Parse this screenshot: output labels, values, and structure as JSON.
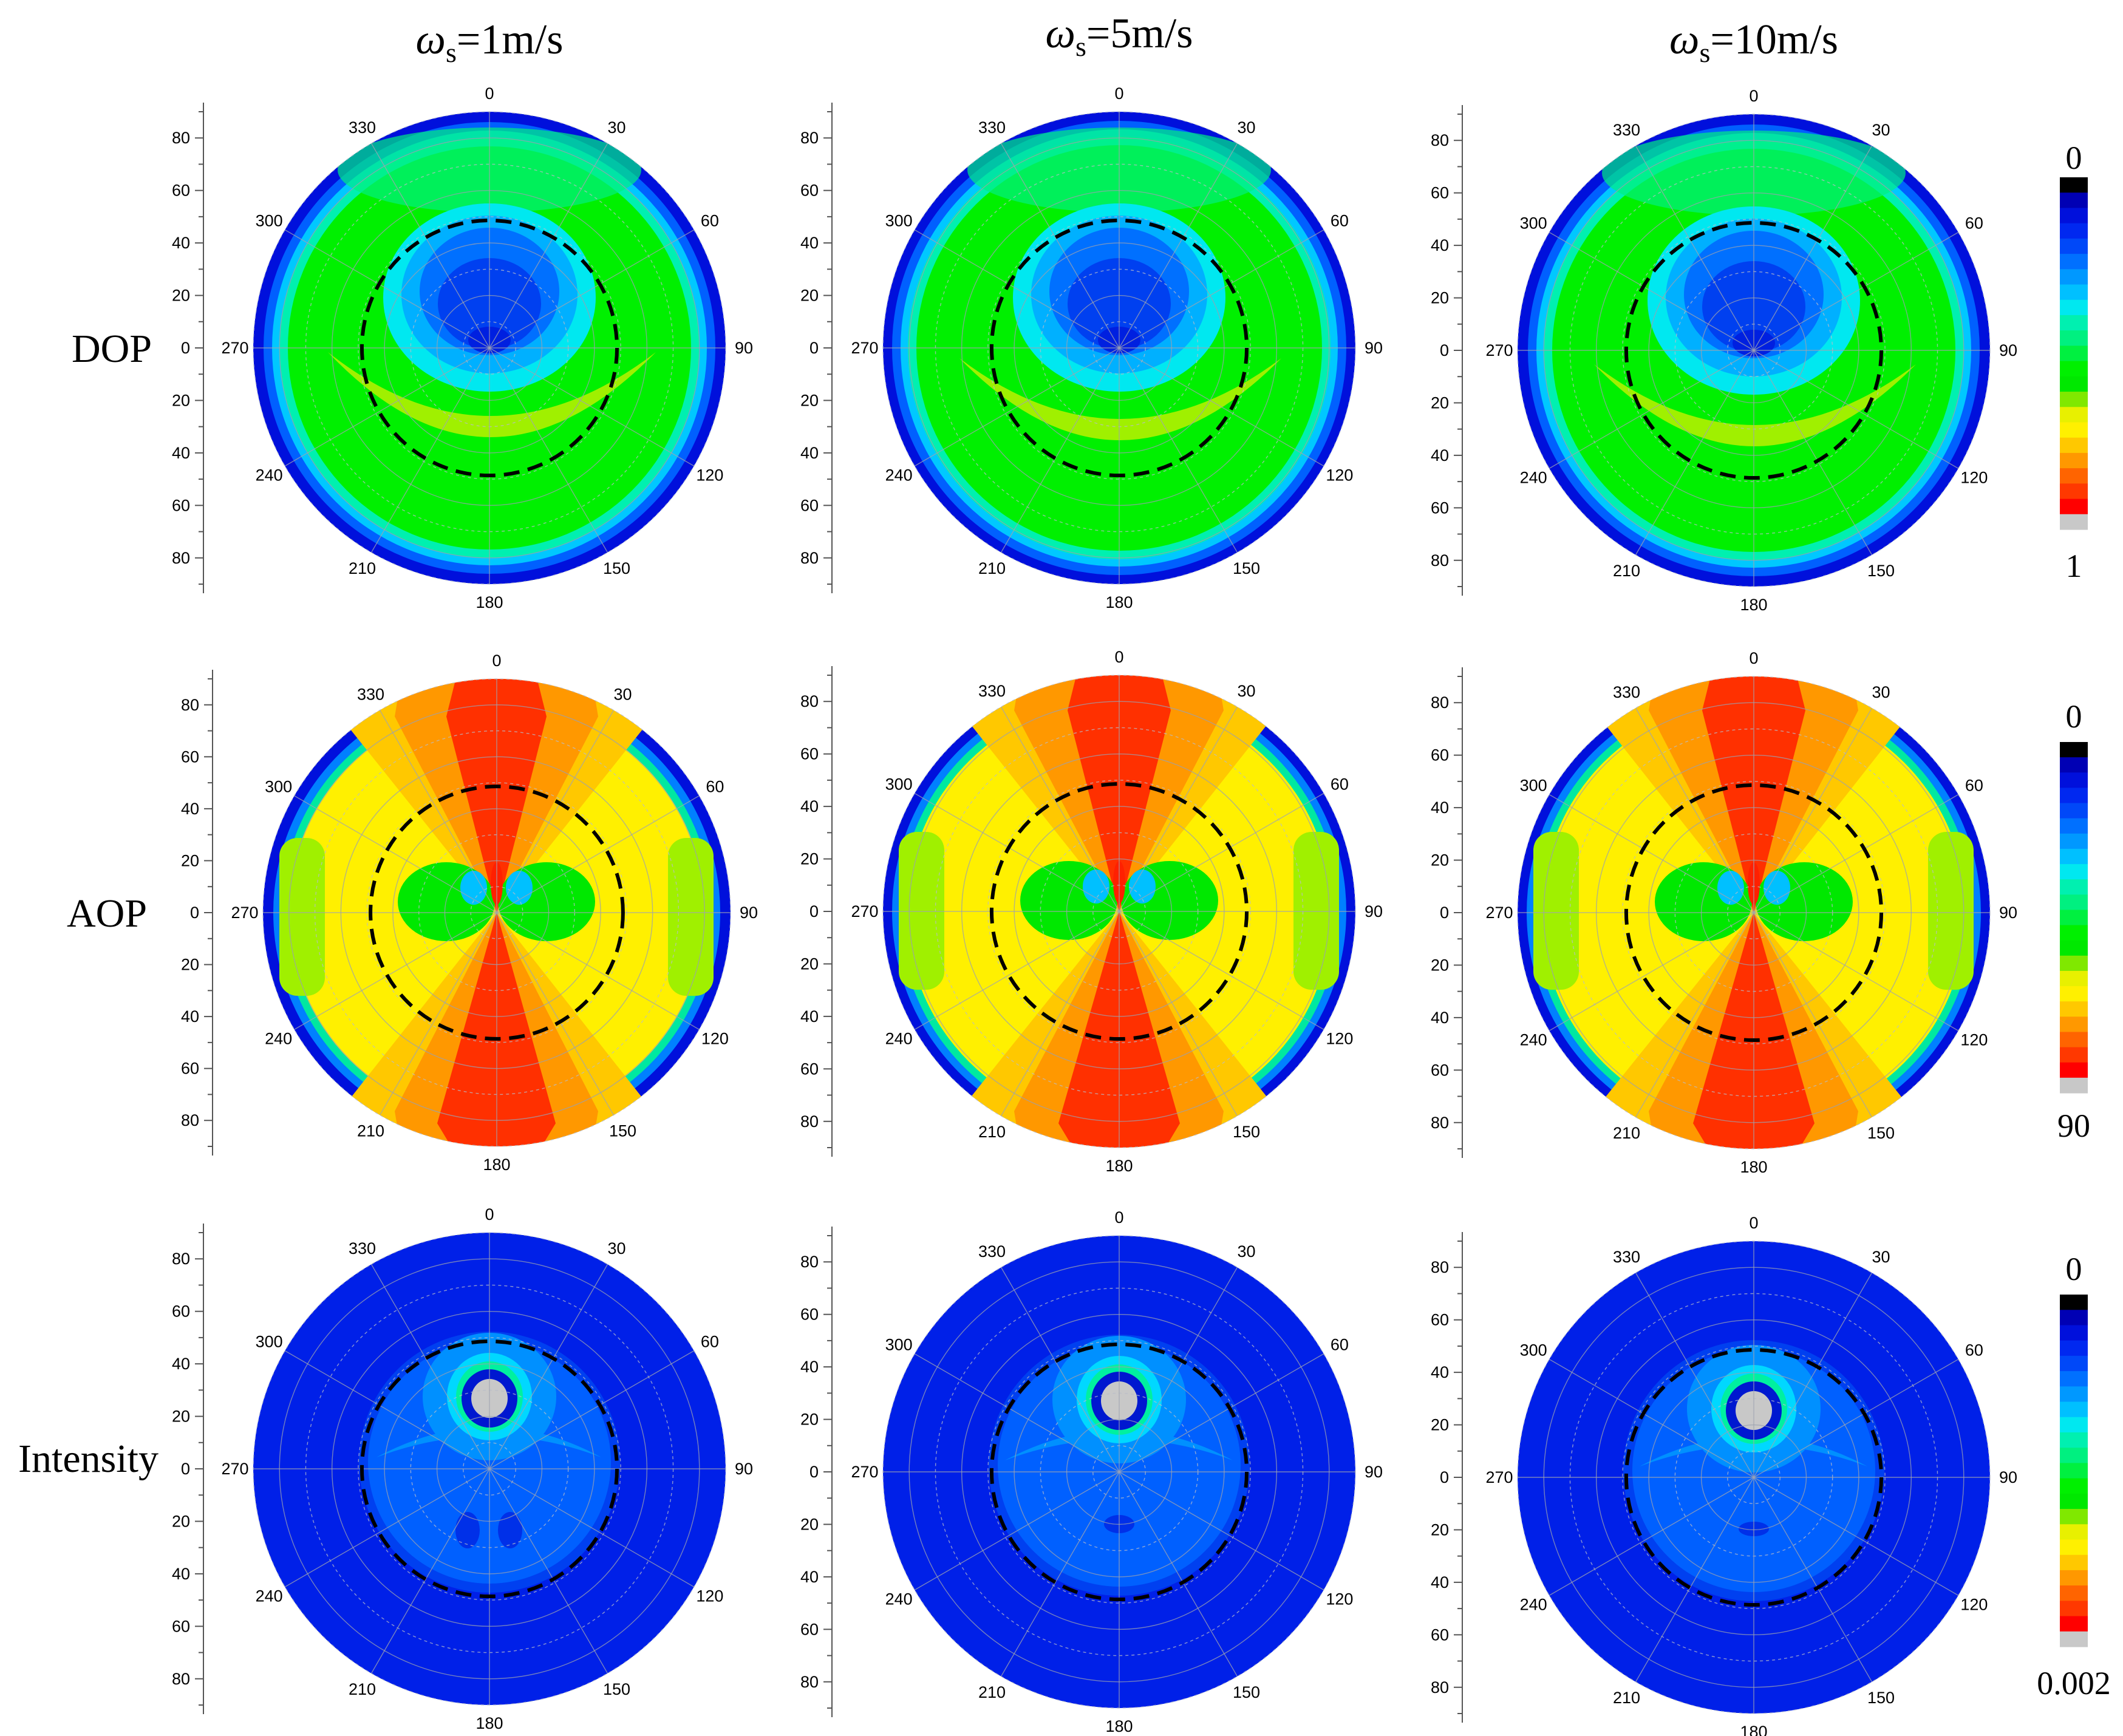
{
  "figure": {
    "column_titles": [
      {
        "symbol": "ω",
        "subscript": "s",
        "value": "=1m/s"
      },
      {
        "symbol": "ω",
        "subscript": "s",
        "value": "=5m/s"
      },
      {
        "symbol": "ω",
        "subscript": "s",
        "value": "=10m/s"
      }
    ],
    "row_labels": [
      "DOP",
      "AOP",
      "Intensity"
    ]
  },
  "chart_data": {
    "type": "polar-contour",
    "angle_ticks": [
      "0",
      "30",
      "60",
      "90",
      "120",
      "150",
      "180",
      "210",
      "240",
      "270",
      "300",
      "330"
    ],
    "radial_ticks": [
      "80",
      "60",
      "40",
      "20",
      "0",
      "20",
      "40",
      "60",
      "80"
    ],
    "radial_range": [
      0,
      90
    ],
    "dashed_circle_radius": 48.6,
    "panels": [
      {
        "row": "DOP",
        "wind_speed": "1m/s"
      },
      {
        "row": "DOP",
        "wind_speed": "5m/s"
      },
      {
        "row": "DOP",
        "wind_speed": "10m/s"
      },
      {
        "row": "AOP",
        "wind_speed": "1m/s"
      },
      {
        "row": "AOP",
        "wind_speed": "5m/s"
      },
      {
        "row": "AOP",
        "wind_speed": "10m/s"
      },
      {
        "row": "Intensity",
        "wind_speed": "1m/s"
      },
      {
        "row": "Intensity",
        "wind_speed": "5m/s"
      },
      {
        "row": "Intensity",
        "wind_speed": "10m/s"
      }
    ],
    "colorbars": [
      {
        "row": "DOP",
        "min_label": "0",
        "max_label": "1"
      },
      {
        "row": "AOP",
        "min_label": "0",
        "max_label": "90"
      },
      {
        "row": "Intensity",
        "min_label": "0",
        "max_label": "0.002"
      }
    ],
    "colormap": [
      "#000000",
      "#0000b4",
      "#0010dc",
      "#0028f0",
      "#0048f8",
      "#0070ff",
      "#0098ff",
      "#00c0ff",
      "#00e8f0",
      "#00f0b0",
      "#00f080",
      "#00f040",
      "#00f000",
      "#00e800",
      "#80e800",
      "#e8f000",
      "#fff000",
      "#ffc800",
      "#ff9800",
      "#ff6400",
      "#ff3800",
      "#ff0000",
      "#c8c8c8"
    ]
  }
}
